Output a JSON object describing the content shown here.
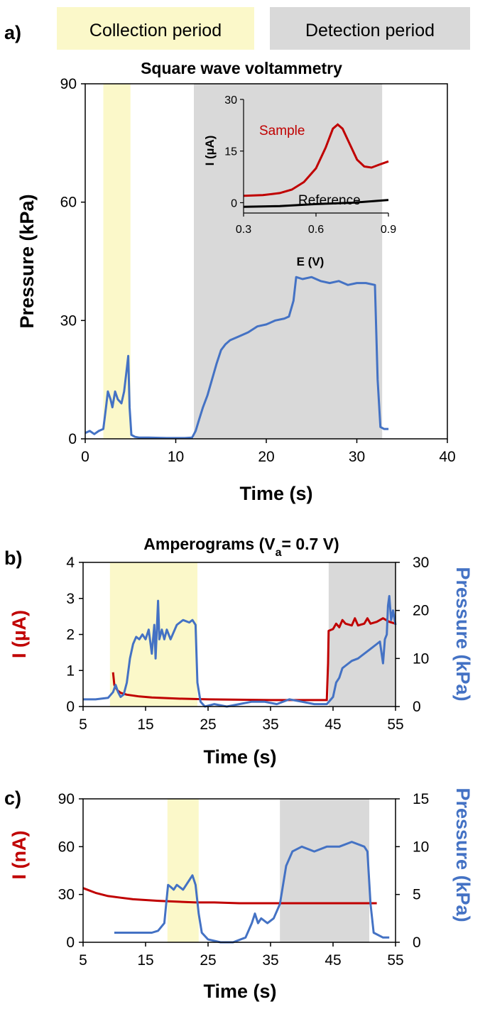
{
  "legend": {
    "collection_label": "Collection period",
    "detection_label": "Detection period",
    "collection_color": "#fbf8c9",
    "detection_color": "#d9d9d9"
  },
  "colors": {
    "pressure": "#4472c4",
    "current": "#c00000",
    "reference": "#000000"
  },
  "chart_data": [
    {
      "id": "a",
      "panel_label": "a)",
      "type": "line",
      "title": "Square wave voltammetry",
      "xlabel": "Time (s)",
      "ylabel": "Pressure (kPa)",
      "xlim": [
        0,
        40
      ],
      "ylim": [
        0,
        90
      ],
      "xticks": [
        0,
        10,
        20,
        30,
        40
      ],
      "yticks": [
        0,
        30,
        60,
        90
      ],
      "shaded": [
        {
          "type": "collection",
          "from": 2,
          "to": 5
        },
        {
          "type": "detection",
          "from": 12,
          "to": 32.8
        }
      ],
      "series": [
        {
          "axis": "left",
          "color": "#4472c4",
          "points": [
            [
              0,
              1.5
            ],
            [
              0.5,
              2
            ],
            [
              1,
              1.2
            ],
            [
              1.5,
              2
            ],
            [
              2,
              2.5
            ],
            [
              2.3,
              8
            ],
            [
              2.5,
              12
            ],
            [
              2.8,
              10
            ],
            [
              3,
              8
            ],
            [
              3.3,
              12
            ],
            [
              3.6,
              10
            ],
            [
              4,
              9
            ],
            [
              4.3,
              12
            ],
            [
              4.6,
              18
            ],
            [
              4.75,
              21
            ],
            [
              4.9,
              8
            ],
            [
              5.1,
              1
            ],
            [
              5.5,
              0.5
            ],
            [
              6,
              0.3
            ],
            [
              7,
              0.3
            ],
            [
              9,
              0.2
            ],
            [
              11,
              0.2
            ],
            [
              11.8,
              0.3
            ],
            [
              12.2,
              2
            ],
            [
              12.6,
              5
            ],
            [
              13,
              8
            ],
            [
              13.5,
              11
            ],
            [
              14,
              15
            ],
            [
              14.5,
              19
            ],
            [
              15,
              22.5
            ],
            [
              15.5,
              24
            ],
            [
              16,
              25
            ],
            [
              17,
              26
            ],
            [
              18,
              27
            ],
            [
              19,
              28.5
            ],
            [
              20,
              29
            ],
            [
              21,
              30
            ],
            [
              22,
              30.5
            ],
            [
              22.5,
              31
            ],
            [
              23,
              35
            ],
            [
              23.3,
              41
            ],
            [
              24,
              40.5
            ],
            [
              25,
              41
            ],
            [
              26,
              40
            ],
            [
              27,
              39.5
            ],
            [
              28,
              40
            ],
            [
              29,
              39
            ],
            [
              30,
              39.5
            ],
            [
              31,
              39.5
            ],
            [
              32,
              39
            ],
            [
              32.3,
              15
            ],
            [
              32.6,
              3
            ],
            [
              33,
              2.5
            ],
            [
              33.5,
              2.5
            ]
          ]
        }
      ],
      "inset": {
        "xlabel": "E (V)",
        "ylabel": "I (µA)",
        "xlim": [
          0.3,
          0.9
        ],
        "ylim": [
          -3,
          30
        ],
        "xticks": [
          0.3,
          0.6,
          0.9
        ],
        "yticks": [
          0,
          15,
          30
        ],
        "series": [
          {
            "name": "Sample",
            "color": "#c00000",
            "points": [
              [
                0.3,
                2
              ],
              [
                0.38,
                2.2
              ],
              [
                0.45,
                2.8
              ],
              [
                0.5,
                3.8
              ],
              [
                0.55,
                6
              ],
              [
                0.6,
                10
              ],
              [
                0.64,
                16
              ],
              [
                0.67,
                21.5
              ],
              [
                0.69,
                22.7
              ],
              [
                0.71,
                21.5
              ],
              [
                0.74,
                17
              ],
              [
                0.77,
                12.5
              ],
              [
                0.8,
                10.5
              ],
              [
                0.83,
                10.2
              ],
              [
                0.86,
                11
              ],
              [
                0.9,
                12
              ]
            ]
          },
          {
            "name": "Reference",
            "color": "#000000",
            "points": [
              [
                0.3,
                -1.2
              ],
              [
                0.45,
                -1
              ],
              [
                0.6,
                -0.4
              ],
              [
                0.75,
                0
              ],
              [
                0.9,
                0.8
              ]
            ]
          }
        ]
      }
    },
    {
      "id": "b",
      "panel_label": "b)",
      "type": "line",
      "title_main": "Amperograms  (V",
      "title_sub": "a",
      "title_tail": "= 0.7 V)",
      "xlabel": "Time (s)",
      "ylabel_left": "I (µA)",
      "ylabel_right": "Pressure (kPa)",
      "xlim": [
        5,
        55
      ],
      "ylim_left": [
        0,
        4
      ],
      "ylim_right": [
        0,
        30
      ],
      "xticks": [
        5,
        15,
        25,
        35,
        45,
        55
      ],
      "yticks_left": [
        0,
        1,
        2,
        3,
        4
      ],
      "yticks_right": [
        0,
        10,
        20,
        30
      ],
      "shaded": [
        {
          "type": "collection",
          "from": 9.3,
          "to": 23.3
        },
        {
          "type": "detection",
          "from": 44.3,
          "to": 55
        }
      ],
      "series": [
        {
          "axis": "left",
          "color": "#c00000",
          "points": [
            [
              9.8,
              0.95
            ],
            [
              10,
              0.6
            ],
            [
              10.5,
              0.45
            ],
            [
              11,
              0.38
            ],
            [
              12,
              0.33
            ],
            [
              14,
              0.28
            ],
            [
              16,
              0.25
            ],
            [
              20,
              0.22
            ],
            [
              25,
              0.2
            ],
            [
              30,
              0.19
            ],
            [
              35,
              0.18
            ],
            [
              40,
              0.18
            ],
            [
              44,
              0.18
            ],
            [
              44.2,
              1.2
            ],
            [
              44.3,
              2.1
            ],
            [
              45,
              2.15
            ],
            [
              45.5,
              2.3
            ],
            [
              46,
              2.2
            ],
            [
              46.5,
              2.4
            ],
            [
              47,
              2.3
            ],
            [
              48,
              2.25
            ],
            [
              48.5,
              2.45
            ],
            [
              49,
              2.25
            ],
            [
              50,
              2.3
            ],
            [
              50.5,
              2.45
            ],
            [
              51,
              2.3
            ],
            [
              52,
              2.35
            ],
            [
              53,
              2.45
            ],
            [
              54,
              2.35
            ],
            [
              55,
              2.3
            ]
          ]
        },
        {
          "axis": "right",
          "color": "#4472c4",
          "points": [
            [
              5,
              1.5
            ],
            [
              7,
              1.5
            ],
            [
              9,
              1.8
            ],
            [
              9.8,
              3
            ],
            [
              10.2,
              4.5
            ],
            [
              10.6,
              3
            ],
            [
              11,
              2
            ],
            [
              11.5,
              2.5
            ],
            [
              12,
              5
            ],
            [
              12.5,
              10
            ],
            [
              13,
              13
            ],
            [
              13.5,
              14.5
            ],
            [
              14,
              14
            ],
            [
              14.5,
              15
            ],
            [
              15,
              14
            ],
            [
              15.5,
              16
            ],
            [
              16,
              11
            ],
            [
              16.4,
              17
            ],
            [
              16.6,
              10
            ],
            [
              17,
              22
            ],
            [
              17.2,
              14
            ],
            [
              17.6,
              16
            ],
            [
              18,
              14
            ],
            [
              18.4,
              16
            ],
            [
              19,
              14
            ],
            [
              20,
              17
            ],
            [
              21,
              18
            ],
            [
              22,
              17.5
            ],
            [
              22.5,
              18
            ],
            [
              23,
              17
            ],
            [
              23.3,
              5
            ],
            [
              23.8,
              1
            ],
            [
              24.5,
              0
            ],
            [
              26,
              0.5
            ],
            [
              28,
              0
            ],
            [
              30,
              0.5
            ],
            [
              32,
              1
            ],
            [
              34,
              1
            ],
            [
              36,
              0.5
            ],
            [
              38,
              1.5
            ],
            [
              40,
              1
            ],
            [
              42,
              0.5
            ],
            [
              44,
              0.5
            ],
            [
              45,
              2
            ],
            [
              45.5,
              5
            ],
            [
              46,
              6
            ],
            [
              46.5,
              8
            ],
            [
              47,
              8.5
            ],
            [
              48,
              9.5
            ],
            [
              49,
              10
            ],
            [
              50,
              11
            ],
            [
              51,
              12
            ],
            [
              52,
              13
            ],
            [
              52.5,
              13.5
            ],
            [
              53,
              9
            ],
            [
              53.3,
              14
            ],
            [
              53.6,
              15
            ],
            [
              53.8,
              21
            ],
            [
              54,
              23
            ],
            [
              54.3,
              18
            ],
            [
              54.6,
              20
            ],
            [
              55,
              17
            ]
          ]
        }
      ]
    },
    {
      "id": "c",
      "panel_label": "c)",
      "type": "line",
      "xlabel": "Time (s)",
      "ylabel_left": "I (nA)",
      "ylabel_right": "Pressure (kPa)",
      "xlim": [
        5,
        55
      ],
      "ylim_left": [
        0,
        90
      ],
      "ylim_right": [
        0,
        15
      ],
      "xticks": [
        5,
        15,
        25,
        35,
        45,
        55
      ],
      "yticks_left": [
        0,
        30,
        60,
        90
      ],
      "yticks_right": [
        0,
        5,
        10,
        15
      ],
      "shaded": [
        {
          "type": "collection",
          "from": 18.5,
          "to": 23.5
        },
        {
          "type": "detection",
          "from": 36.5,
          "to": 50.8
        }
      ],
      "series": [
        {
          "axis": "left",
          "color": "#c00000",
          "points": [
            [
              5,
              34
            ],
            [
              7,
              31
            ],
            [
              9,
              29
            ],
            [
              11,
              28
            ],
            [
              13,
              27
            ],
            [
              15,
              26.5
            ],
            [
              17,
              26
            ],
            [
              20,
              25.5
            ],
            [
              23,
              25
            ],
            [
              26,
              25
            ],
            [
              30,
              24.5
            ],
            [
              33,
              24.5
            ],
            [
              36,
              24.5
            ],
            [
              40,
              24.5
            ],
            [
              45,
              24.5
            ],
            [
              50,
              24.5
            ],
            [
              52,
              24.5
            ]
          ]
        },
        {
          "axis": "right",
          "color": "#4472c4",
          "points": [
            [
              10,
              1
            ],
            [
              12,
              1
            ],
            [
              14,
              1
            ],
            [
              16,
              1
            ],
            [
              17,
              1.2
            ],
            [
              18,
              2
            ],
            [
              18.3,
              4
            ],
            [
              18.6,
              6
            ],
            [
              19,
              5.8
            ],
            [
              19.5,
              5.5
            ],
            [
              20,
              6
            ],
            [
              21,
              5.5
            ],
            [
              22,
              6.5
            ],
            [
              22.5,
              7
            ],
            [
              23,
              6
            ],
            [
              23.5,
              3
            ],
            [
              24,
              1
            ],
            [
              25,
              0.3
            ],
            [
              27,
              0
            ],
            [
              29,
              0
            ],
            [
              31,
              0.5
            ],
            [
              32,
              2
            ],
            [
              32.5,
              3
            ],
            [
              33,
              2
            ],
            [
              33.5,
              2.5
            ],
            [
              34.5,
              2
            ],
            [
              35.5,
              2.5
            ],
            [
              36.5,
              4
            ],
            [
              37.5,
              8
            ],
            [
              38.5,
              9.5
            ],
            [
              40,
              10
            ],
            [
              42,
              9.5
            ],
            [
              44,
              10
            ],
            [
              46,
              10
            ],
            [
              48,
              10.5
            ],
            [
              50,
              10
            ],
            [
              50.5,
              9.5
            ],
            [
              51,
              4
            ],
            [
              51.5,
              1
            ],
            [
              53,
              0.5
            ],
            [
              54,
              0.5
            ]
          ]
        }
      ]
    }
  ]
}
